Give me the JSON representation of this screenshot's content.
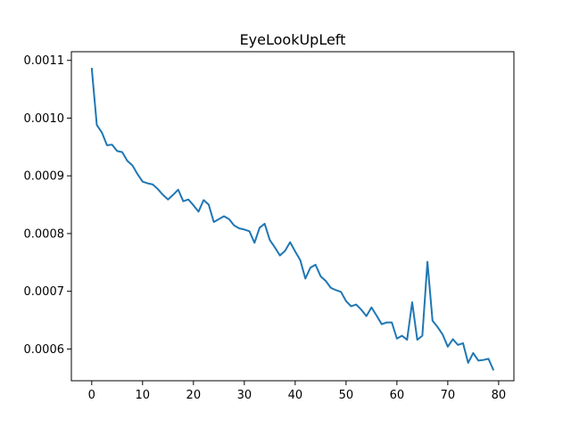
{
  "chart_data": {
    "type": "line",
    "title": "EyeLookUpLeft",
    "xlabel": "",
    "ylabel": "",
    "xlim": [
      -4,
      83
    ],
    "ylim": [
      0.000545,
      0.001115
    ],
    "grid": false,
    "x_ticks": [
      0,
      10,
      20,
      30,
      40,
      50,
      60,
      70,
      80
    ],
    "x_tick_labels": [
      "0",
      "10",
      "20",
      "30",
      "40",
      "50",
      "60",
      "70",
      "80"
    ],
    "y_ticks": [
      0.0006,
      0.0007,
      0.0008,
      0.0009,
      0.001,
      0.0011
    ],
    "y_tick_labels": [
      "0.0006",
      "0.0007",
      "0.0008",
      "0.0009",
      "0.0010",
      "0.0011"
    ],
    "series": [
      {
        "color": "#1f77b4",
        "x": [
          0,
          1,
          2,
          3,
          4,
          5,
          6,
          7,
          8,
          9,
          10,
          11,
          12,
          13,
          14,
          15,
          16,
          17,
          18,
          19,
          20,
          21,
          22,
          23,
          24,
          25,
          26,
          27,
          28,
          29,
          30,
          31,
          32,
          33,
          34,
          35,
          36,
          37,
          38,
          39,
          40,
          41,
          42,
          43,
          44,
          45,
          46,
          47,
          48,
          49,
          50,
          51,
          52,
          53,
          54,
          55,
          56,
          57,
          58,
          59,
          60,
          61,
          62,
          63,
          64,
          65,
          66,
          67,
          68,
          69,
          70,
          71,
          72,
          73,
          74,
          75,
          76,
          77,
          78,
          79
        ],
        "values": [
          0.001087,
          0.000988,
          0.000975,
          0.000953,
          0.000954,
          0.000943,
          0.000941,
          0.000926,
          0.000918,
          0.000903,
          0.00089,
          0.000887,
          0.000885,
          0.000877,
          0.000867,
          0.000859,
          0.000867,
          0.000876,
          0.000856,
          0.000859,
          0.000849,
          0.000838,
          0.000858,
          0.00085,
          0.00082,
          0.000825,
          0.00083,
          0.000825,
          0.000814,
          0.000809,
          0.000807,
          0.000804,
          0.000784,
          0.00081,
          0.000817,
          0.000789,
          0.000776,
          0.000762,
          0.00077,
          0.000785,
          0.000769,
          0.000754,
          0.000722,
          0.000741,
          0.000746,
          0.000726,
          0.000718,
          0.000706,
          0.000702,
          0.000699,
          0.000683,
          0.000674,
          0.000677,
          0.000668,
          0.000657,
          0.000672,
          0.000658,
          0.000643,
          0.000646,
          0.000646,
          0.000618,
          0.000623,
          0.000616,
          0.000681,
          0.000616,
          0.000623,
          0.000751,
          0.000649,
          0.000638,
          0.000625,
          0.000604,
          0.000617,
          0.000607,
          0.00061,
          0.000576,
          0.000593,
          0.00058,
          0.000581,
          0.000583,
          0.000563
        ]
      }
    ]
  }
}
